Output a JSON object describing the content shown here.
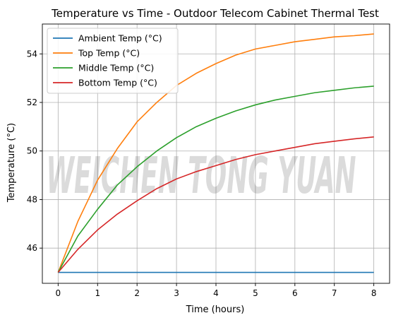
{
  "watermark_text": "WEICHEN TONG YUAN",
  "chart_data": {
    "type": "line",
    "title": "Temperature vs Time - Outdoor Telecom Cabinet Thermal Test",
    "xlabel": "Time (hours)",
    "ylabel": "Temperature (°C)",
    "xlim": [
      -0.4,
      8.4
    ],
    "ylim": [
      44.55,
      55.23
    ],
    "xticks": [
      0,
      1,
      2,
      3,
      4,
      5,
      6,
      7,
      8
    ],
    "yticks": [
      46,
      48,
      50,
      52,
      54
    ],
    "grid": true,
    "legend_position": "upper left",
    "x": [
      0,
      0.5,
      1,
      1.5,
      2,
      2.5,
      3,
      3.5,
      4,
      4.5,
      5,
      5.5,
      6,
      6.5,
      7,
      7.5,
      8
    ],
    "series": [
      {
        "name": "Ambient Temp (°C)",
        "color": "#1f77b4",
        "values": [
          45,
          45,
          45,
          45,
          45,
          45,
          45,
          45,
          45,
          45,
          45,
          45,
          45,
          45,
          45,
          45,
          45
        ]
      },
      {
        "name": "Top Temp (°C)",
        "color": "#ff7f0e",
        "values": [
          45.0,
          47.1,
          48.8,
          50.1,
          51.2,
          52.0,
          52.7,
          53.2,
          53.6,
          53.95,
          54.2,
          54.35,
          54.5,
          54.6,
          54.7,
          54.75,
          54.82
        ]
      },
      {
        "name": "Middle Temp (°C)",
        "color": "#2ca02c",
        "values": [
          45.0,
          46.5,
          47.6,
          48.6,
          49.35,
          50.0,
          50.55,
          51.0,
          51.35,
          51.65,
          51.9,
          52.1,
          52.25,
          52.4,
          52.5,
          52.6,
          52.67
        ]
      },
      {
        "name": "Bottom Temp (°C)",
        "color": "#d62728",
        "values": [
          45.0,
          45.95,
          46.75,
          47.4,
          47.95,
          48.45,
          48.85,
          49.15,
          49.4,
          49.65,
          49.85,
          50.0,
          50.15,
          50.3,
          50.4,
          50.5,
          50.58
        ]
      }
    ]
  }
}
